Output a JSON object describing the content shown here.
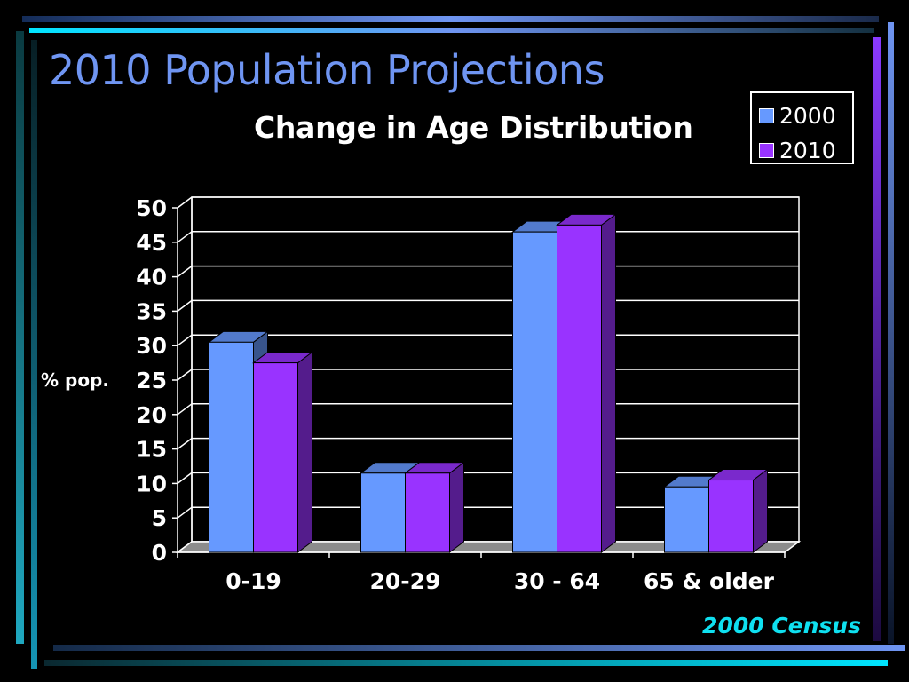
{
  "slide": {
    "title": "2010 Population Projections",
    "source_note": "2000 Census"
  },
  "colors": {
    "background": "#000000",
    "title": "#6f95f2",
    "source_note": "#0fe0f0",
    "series_2000": "#6699ff",
    "series_2010": "#9933ff"
  },
  "chart_data": {
    "type": "bar",
    "style": "3d-clustered-column",
    "title": "Change in Age Distribution",
    "xlabel": "",
    "ylabel": "% pop.",
    "categories": [
      "0-19",
      "20-29",
      "30 - 64",
      "65 & older"
    ],
    "series": [
      {
        "name": "2000",
        "color": "#6699ff",
        "values": [
          30.5,
          11.5,
          46.5,
          9.5
        ]
      },
      {
        "name": "2010",
        "color": "#9933ff",
        "values": [
          27.5,
          11.5,
          47.5,
          10.5
        ]
      }
    ],
    "ylim": [
      0,
      50
    ],
    "yticks": [
      "0",
      "5",
      "10",
      "15",
      "20",
      "25",
      "30",
      "35",
      "40",
      "45",
      "50"
    ],
    "grid": true,
    "legend_position": "top-right"
  }
}
